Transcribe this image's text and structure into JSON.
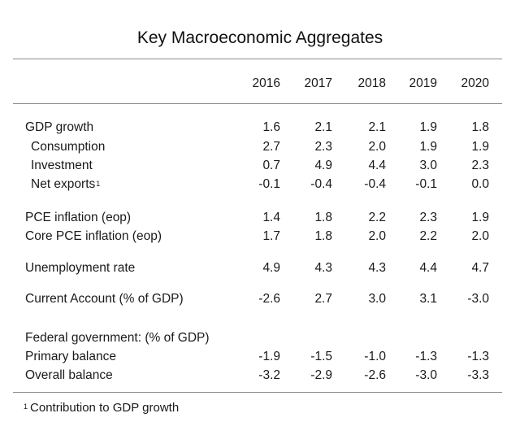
{
  "title": "Key Macroeconomic Aggregates",
  "years": [
    "2016",
    "2017",
    "2018",
    "2019",
    "2020"
  ],
  "rows": [
    {
      "label": "GDP growth",
      "values": [
        "1.6",
        "2.1",
        "2.1",
        "1.9",
        "1.8"
      ]
    },
    {
      "label": "Consumption",
      "values": [
        "2.7",
        "2.3",
        "2.0",
        "1.9",
        "1.9"
      ]
    },
    {
      "label": "Investment",
      "values": [
        "0.7",
        "4.9",
        "4.4",
        "3.0",
        "2.3"
      ]
    },
    {
      "label": "Net exports",
      "footnote_mark": "1",
      "values": [
        "-0.1",
        "-0.4",
        "-0.4",
        "-0.1",
        "0.0"
      ]
    },
    {
      "label": "PCE inflation (eop)",
      "values": [
        "1.4",
        "1.8",
        "2.2",
        "2.3",
        "1.9"
      ]
    },
    {
      "label": "Core PCE inflation (eop)",
      "values": [
        "1.7",
        "1.8",
        "2.0",
        "2.2",
        "2.0"
      ]
    },
    {
      "label": "Unemployment rate",
      "values": [
        "4.9",
        "4.3",
        "4.3",
        "4.4",
        "4.7"
      ]
    },
    {
      "label": "Current Account (% of GDP)",
      "values": [
        "-2.6",
        "2.7",
        "3.0",
        "3.1",
        "-3.0"
      ]
    },
    {
      "label": "Federal government: (% of GDP)"
    },
    {
      "label": "Primary balance",
      "values": [
        "-1.9",
        "-1.5",
        "-1.0",
        "-1.3",
        "-1.3"
      ]
    },
    {
      "label": "Overall balance",
      "values": [
        "-3.2",
        "-2.9",
        "-2.6",
        "-3.0",
        "-3.3"
      ]
    }
  ],
  "footnote": {
    "mark": "1",
    "text": "Contribution to GDP growth"
  }
}
